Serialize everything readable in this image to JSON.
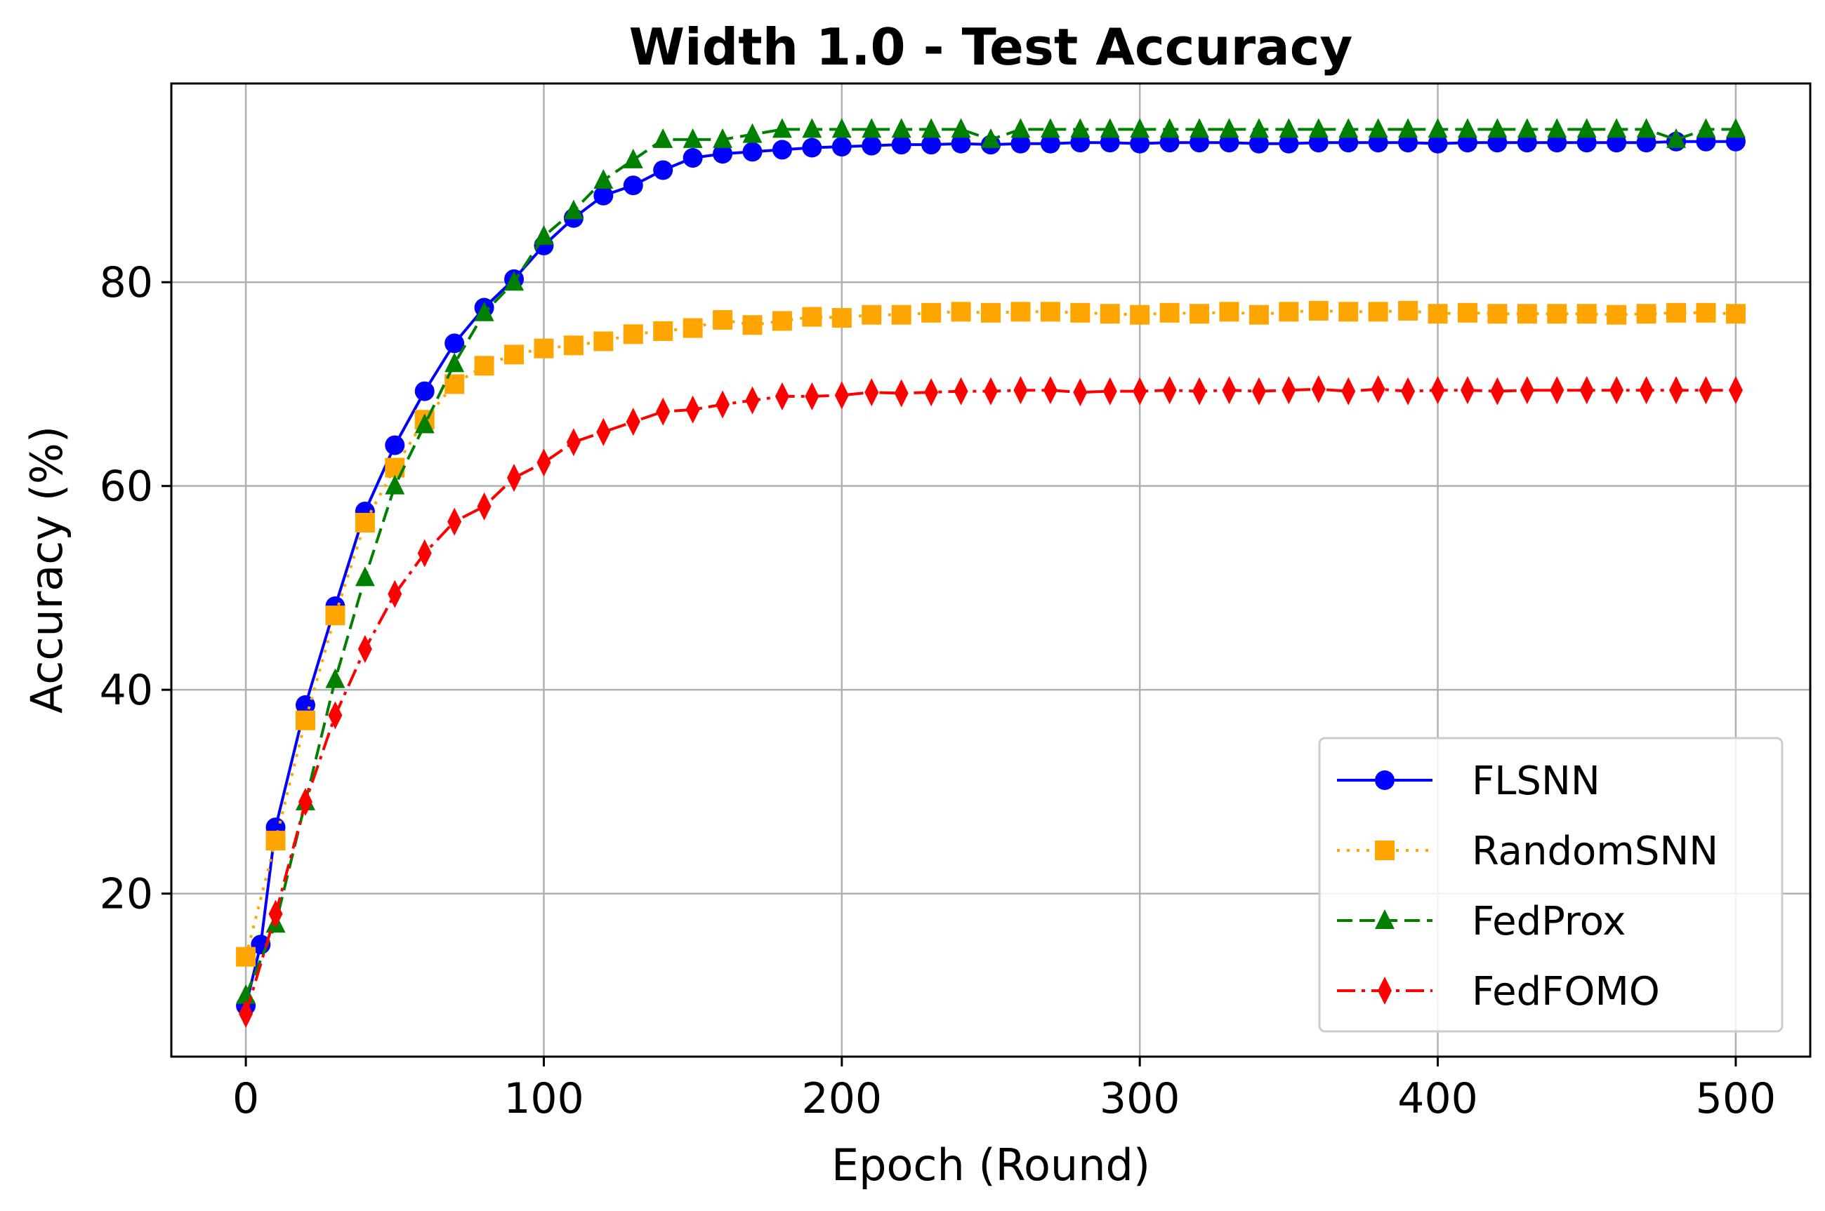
{
  "chart_data": {
    "type": "line",
    "title": "Width 1.0 - Test Accuracy",
    "xlabel": "Epoch (Round)",
    "ylabel": "Accuracy (%)",
    "xlim": [
      -25,
      525
    ],
    "ylim": [
      4,
      99.5
    ],
    "xticks": [
      0,
      100,
      200,
      300,
      400,
      500
    ],
    "yticks": [
      20,
      40,
      60,
      80
    ],
    "grid": true,
    "legend_position": "lower-right",
    "series": [
      {
        "name": "FLSNN",
        "color": "#0000ff",
        "line_style": "solid",
        "marker": "circle",
        "points": [
          [
            0,
            9
          ],
          [
            5,
            15
          ],
          [
            10,
            26.5
          ],
          [
            20,
            38.5
          ],
          [
            30,
            48.2
          ],
          [
            40,
            57.5
          ],
          [
            50,
            64
          ],
          [
            60,
            69.3
          ],
          [
            70,
            74
          ],
          [
            80,
            77.5
          ],
          [
            90,
            80.3
          ],
          [
            100,
            83.6
          ],
          [
            110,
            86.3
          ],
          [
            120,
            88.5
          ],
          [
            130,
            89.5
          ],
          [
            140,
            91
          ],
          [
            150,
            92.2
          ],
          [
            160,
            92.6
          ],
          [
            170,
            92.8
          ],
          [
            180,
            93
          ],
          [
            190,
            93.2
          ],
          [
            200,
            93.3
          ],
          [
            210,
            93.4
          ],
          [
            220,
            93.5
          ],
          [
            230,
            93.5
          ],
          [
            240,
            93.6
          ],
          [
            250,
            93.5
          ],
          [
            260,
            93.6
          ],
          [
            270,
            93.6
          ],
          [
            280,
            93.7
          ],
          [
            290,
            93.7
          ],
          [
            300,
            93.6
          ],
          [
            310,
            93.7
          ],
          [
            320,
            93.7
          ],
          [
            330,
            93.7
          ],
          [
            340,
            93.6
          ],
          [
            350,
            93.6
          ],
          [
            360,
            93.7
          ],
          [
            370,
            93.7
          ],
          [
            380,
            93.7
          ],
          [
            390,
            93.7
          ],
          [
            400,
            93.6
          ],
          [
            410,
            93.7
          ],
          [
            420,
            93.7
          ],
          [
            430,
            93.7
          ],
          [
            440,
            93.7
          ],
          [
            450,
            93.7
          ],
          [
            460,
            93.7
          ],
          [
            470,
            93.7
          ],
          [
            480,
            93.8
          ],
          [
            490,
            93.8
          ],
          [
            500,
            93.8
          ]
        ]
      },
      {
        "name": "RandomSNN",
        "color": "#ffa500",
        "line_style": "dotted",
        "marker": "square",
        "points": [
          [
            0,
            13.8
          ],
          [
            10,
            25.2
          ],
          [
            20,
            37
          ],
          [
            30,
            47.3
          ],
          [
            40,
            56.4
          ],
          [
            50,
            61.8
          ],
          [
            60,
            66.5
          ],
          [
            70,
            70
          ],
          [
            80,
            71.8
          ],
          [
            90,
            72.9
          ],
          [
            100,
            73.5
          ],
          [
            110,
            73.8
          ],
          [
            120,
            74.2
          ],
          [
            130,
            74.9
          ],
          [
            140,
            75.2
          ],
          [
            150,
            75.5
          ],
          [
            160,
            76.3
          ],
          [
            170,
            75.8
          ],
          [
            180,
            76.2
          ],
          [
            190,
            76.6
          ],
          [
            200,
            76.5
          ],
          [
            210,
            76.8
          ],
          [
            220,
            76.8
          ],
          [
            230,
            77
          ],
          [
            240,
            77.1
          ],
          [
            250,
            77
          ],
          [
            260,
            77.1
          ],
          [
            270,
            77.1
          ],
          [
            280,
            77
          ],
          [
            290,
            76.9
          ],
          [
            300,
            76.8
          ],
          [
            310,
            77
          ],
          [
            320,
            76.9
          ],
          [
            330,
            77.1
          ],
          [
            340,
            76.8
          ],
          [
            350,
            77.1
          ],
          [
            360,
            77.2
          ],
          [
            370,
            77.1
          ],
          [
            380,
            77.1
          ],
          [
            390,
            77.2
          ],
          [
            400,
            76.9
          ],
          [
            410,
            77
          ],
          [
            420,
            76.9
          ],
          [
            430,
            76.9
          ],
          [
            440,
            76.9
          ],
          [
            450,
            76.9
          ],
          [
            460,
            76.8
          ],
          [
            470,
            76.9
          ],
          [
            480,
            77
          ],
          [
            490,
            77
          ],
          [
            500,
            76.9
          ]
        ]
      },
      {
        "name": "FedProx",
        "color": "#008000",
        "line_style": "dashed",
        "marker": "triangle",
        "points": [
          [
            0,
            10
          ],
          [
            10,
            17
          ],
          [
            20,
            29
          ],
          [
            30,
            41
          ],
          [
            40,
            51
          ],
          [
            50,
            60
          ],
          [
            60,
            66
          ],
          [
            70,
            72
          ],
          [
            80,
            77
          ],
          [
            90,
            80
          ],
          [
            100,
            84.5
          ],
          [
            110,
            87
          ],
          [
            120,
            90
          ],
          [
            130,
            92
          ],
          [
            140,
            94
          ],
          [
            150,
            94
          ],
          [
            160,
            94
          ],
          [
            170,
            94.5
          ],
          [
            180,
            95
          ],
          [
            190,
            95
          ],
          [
            200,
            95
          ],
          [
            210,
            95
          ],
          [
            220,
            95
          ],
          [
            230,
            95
          ],
          [
            240,
            95
          ],
          [
            250,
            94
          ],
          [
            260,
            95
          ],
          [
            270,
            95
          ],
          [
            280,
            95
          ],
          [
            290,
            95
          ],
          [
            300,
            95
          ],
          [
            310,
            95
          ],
          [
            320,
            95
          ],
          [
            330,
            95
          ],
          [
            340,
            95
          ],
          [
            350,
            95
          ],
          [
            360,
            95
          ],
          [
            370,
            95
          ],
          [
            380,
            95
          ],
          [
            390,
            95
          ],
          [
            400,
            95
          ],
          [
            410,
            95
          ],
          [
            420,
            95
          ],
          [
            430,
            95
          ],
          [
            440,
            95
          ],
          [
            450,
            95
          ],
          [
            460,
            95
          ],
          [
            470,
            95
          ],
          [
            480,
            94
          ],
          [
            490,
            95
          ],
          [
            500,
            95
          ]
        ]
      },
      {
        "name": "FedFOMO",
        "color": "#ff0000",
        "line_style": "dashdot",
        "marker": "thin_diamond",
        "points": [
          [
            0,
            8.2
          ],
          [
            10,
            18
          ],
          [
            20,
            29
          ],
          [
            30,
            37.5
          ],
          [
            40,
            44
          ],
          [
            50,
            49.4
          ],
          [
            60,
            53.4
          ],
          [
            70,
            56.5
          ],
          [
            80,
            58
          ],
          [
            90,
            60.8
          ],
          [
            100,
            62.3
          ],
          [
            110,
            64.3
          ],
          [
            120,
            65.3
          ],
          [
            130,
            66.3
          ],
          [
            140,
            67.3
          ],
          [
            150,
            67.5
          ],
          [
            160,
            68
          ],
          [
            170,
            68.4
          ],
          [
            180,
            68.8
          ],
          [
            190,
            68.8
          ],
          [
            200,
            68.9
          ],
          [
            210,
            69.2
          ],
          [
            220,
            69.1
          ],
          [
            230,
            69.2
          ],
          [
            240,
            69.3
          ],
          [
            250,
            69.3
          ],
          [
            260,
            69.4
          ],
          [
            270,
            69.4
          ],
          [
            280,
            69.2
          ],
          [
            290,
            69.3
          ],
          [
            300,
            69.3
          ],
          [
            310,
            69.4
          ],
          [
            320,
            69.3
          ],
          [
            330,
            69.4
          ],
          [
            340,
            69.3
          ],
          [
            350,
            69.4
          ],
          [
            360,
            69.5
          ],
          [
            370,
            69.3
          ],
          [
            380,
            69.5
          ],
          [
            390,
            69.3
          ],
          [
            400,
            69.4
          ],
          [
            410,
            69.4
          ],
          [
            420,
            69.3
          ],
          [
            430,
            69.4
          ],
          [
            440,
            69.4
          ],
          [
            450,
            69.4
          ],
          [
            460,
            69.4
          ],
          [
            470,
            69.4
          ],
          [
            480,
            69.4
          ],
          [
            490,
            69.4
          ],
          [
            500,
            69.4
          ]
        ]
      }
    ]
  }
}
